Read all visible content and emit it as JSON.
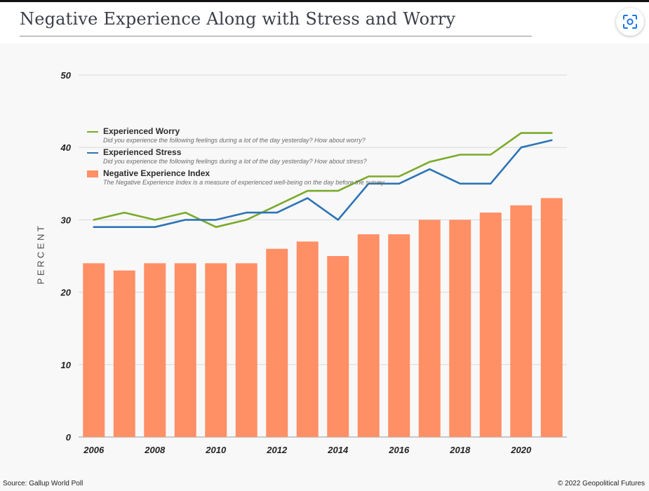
{
  "page": {
    "title": "Negative Experience Along with Stress and Worry",
    "source": "Source: Gallup World Poll",
    "credit": "© 2022 Geopolitical Futures"
  },
  "toolbar": {
    "lens_icon": "google-lens-icon"
  },
  "colors": {
    "worry": "#7aaa2a",
    "stress": "#2d74b6",
    "index": "#ff8f65"
  },
  "chart_data": {
    "type": "bar",
    "title": "Negative Experience Along with Stress and Worry",
    "xlabel": "",
    "ylabel": "PERCENT",
    "ylim": [
      0,
      50
    ],
    "yticks": [
      0,
      10,
      20,
      30,
      40,
      50
    ],
    "xticks": [
      "2006",
      "2008",
      "2010",
      "2012",
      "2014",
      "2016",
      "2018",
      "2020"
    ],
    "grid": true,
    "legend_position": "top-left",
    "categories": [
      "2006",
      "2007",
      "2008",
      "2009",
      "2010",
      "2011",
      "2012",
      "2013",
      "2014",
      "2015",
      "2016",
      "2017",
      "2018",
      "2019",
      "2020",
      "2021"
    ],
    "series": [
      {
        "name": "Negative Experience Index",
        "type": "bar",
        "description": "The Negative Experience Index is a measure of experienced well-being on the day before the survey.",
        "values": [
          24,
          23,
          24,
          24,
          24,
          24,
          26,
          27,
          25,
          28,
          28,
          30,
          30,
          31,
          32,
          33
        ]
      },
      {
        "name": "Experienced Worry",
        "type": "line",
        "description": "Did you experience the following feelings during a lot of the day yesterday? How about worry?",
        "values": [
          30,
          31,
          30,
          31,
          29,
          30,
          32,
          34,
          34,
          36,
          36,
          38,
          39,
          39,
          42,
          42
        ]
      },
      {
        "name": "Experienced Stress",
        "type": "line",
        "description": "Did you experience the following feelings during a lot of the day yesterday? How about stress?",
        "values": [
          29,
          29,
          29,
          30,
          30,
          31,
          31,
          33,
          30,
          35,
          35,
          37,
          35,
          35,
          40,
          41
        ]
      }
    ]
  }
}
